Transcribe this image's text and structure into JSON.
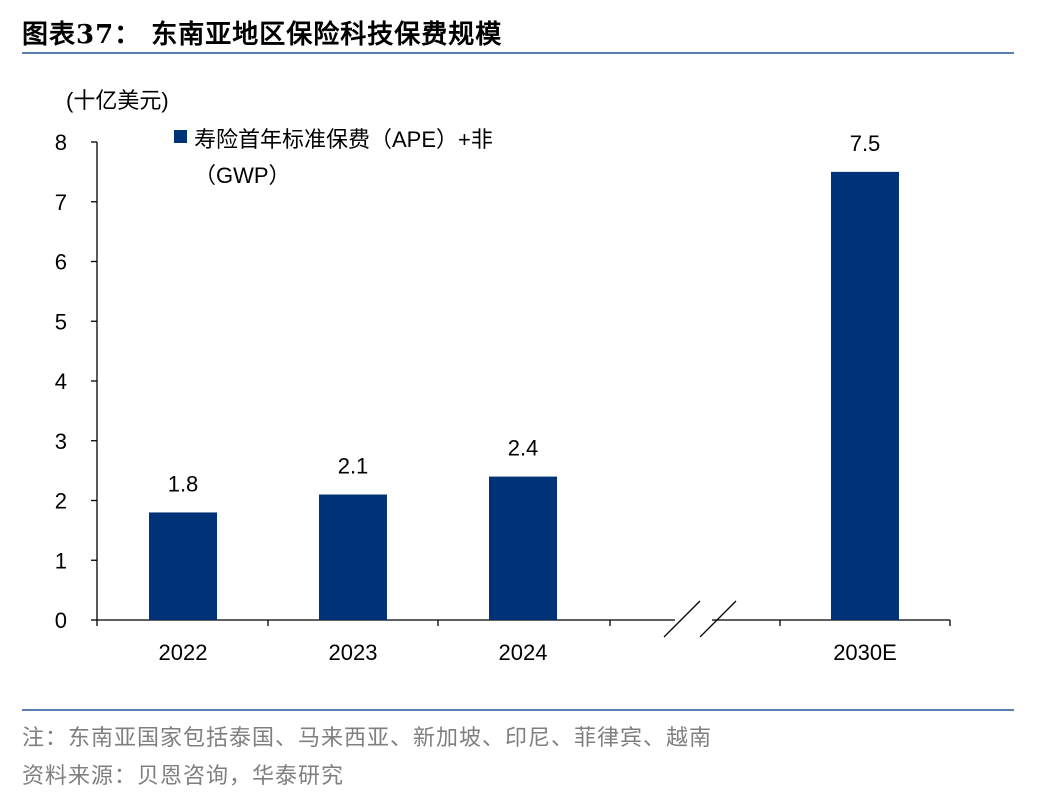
{
  "figure": {
    "title": "图表37： 东南亚地区保险科技保费规模",
    "note": "注：东南亚国家包括泰国、马来西亚、新加坡、印尼、菲律宾、越南",
    "source": "资料来源：贝恩咨询，华泰研究"
  },
  "colors": {
    "bar": "#003278",
    "rule": "#5a7fb0",
    "axis": "#000000",
    "footnote": "#7f7f7f"
  },
  "chart_data": {
    "type": "bar",
    "categories": [
      "2022",
      "2023",
      "2024",
      "2030E"
    ],
    "series": [
      {
        "name": "寿险首年标准保费（APE）+非（GWP）",
        "values": [
          1.8,
          2.1,
          2.4,
          7.5
        ]
      }
    ],
    "data_labels": [
      "1.8",
      "2.1",
      "2.4",
      "7.5"
    ],
    "legend_line1": "寿险首年标准保费（APE）+非",
    "legend_line2": "（GWP）",
    "ylabel": "(十亿美元)",
    "ylim": [
      0,
      8
    ],
    "yticks": [
      0,
      1,
      2,
      3,
      4,
      5,
      6,
      7,
      8
    ],
    "axis_break_between": [
      "2024",
      "2030E"
    ],
    "grid": false,
    "legend_position": "top-left"
  }
}
